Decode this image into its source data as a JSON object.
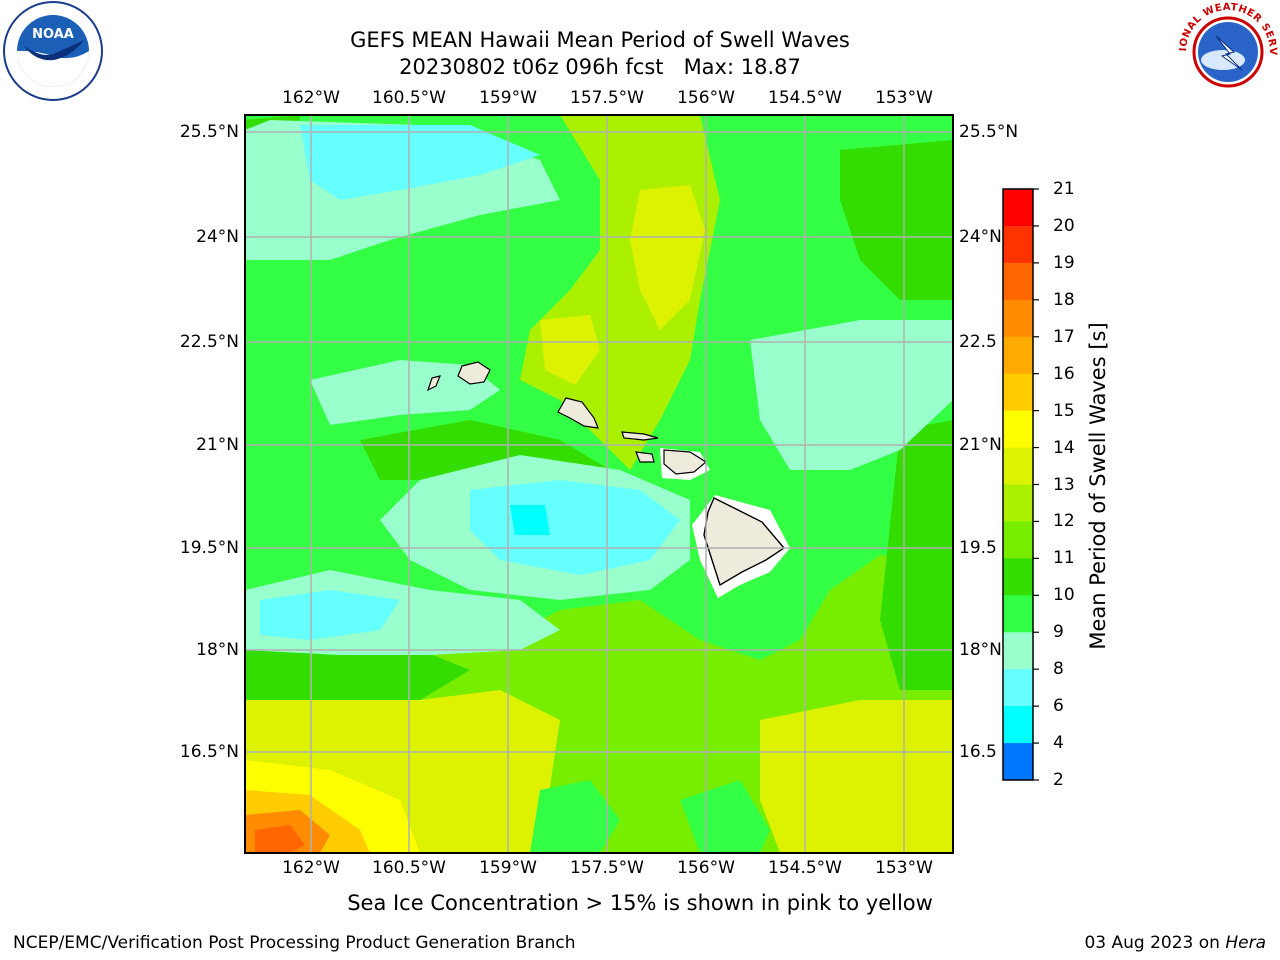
{
  "title": {
    "line1": "GEFS MEAN Hawaii Mean Period of Swell Waves",
    "line2": "20230802 t06z 096h fcst   Max: 18.87"
  },
  "map": {
    "lon_labels": [
      "162°W",
      "160.5°W",
      "159°W",
      "157.5°W",
      "156°W",
      "154.5°W",
      "153°W"
    ],
    "lat_labels": [
      "25.5°N",
      "24°N",
      "22.5°N",
      "21°N",
      "19.5°N",
      "18°N",
      "16.5°N"
    ],
    "right_lat_labels": [
      "25.5°N",
      "24°N",
      "22.5",
      "21°N",
      "19.5",
      "18°N",
      "16.5"
    ],
    "grid": true
  },
  "colorbar": {
    "title": "Mean Period of Swell Waves [s]",
    "levels": [
      "21",
      "20",
      "19",
      "18",
      "17",
      "16",
      "15",
      "14",
      "13",
      "12",
      "11",
      "10",
      "9",
      "8",
      "6",
      "4",
      "2"
    ],
    "colors": [
      "#ff0000",
      "#ff3300",
      "#ff6600",
      "#ff8c00",
      "#ffaa00",
      "#ffcc00",
      "#ffff00",
      "#ddf200",
      "#aaf000",
      "#77ee00",
      "#33dd00",
      "#33ff44",
      "#99ffcc",
      "#66ffff",
      "#00ffff",
      "#0077ff",
      "#0000ff"
    ]
  },
  "palette": {
    "green": "#33ff44",
    "dark_green": "#33dd00",
    "light_green": "#77ee00",
    "yellow_green": "#aaf000",
    "yellow": "#ddf200",
    "bright_yellow": "#ffff00",
    "orange": "#ff8c00",
    "red_orange": "#ff6600",
    "pale_cyan": "#99ffcc",
    "cyan": "#66ffff",
    "land": "#efebdc"
  },
  "subtitle": "Sea Ice Concentration > 15% is shown in pink to yellow",
  "footer": {
    "left": "NCEP/EMC/Verification Post Processing Product Generation Branch",
    "date": "03 Aug 2023 on",
    "machine": "Hera"
  },
  "logos": {
    "left": "noaa-logo",
    "left_text": "NOAA",
    "right": "nws-logo",
    "right_text": "NATIONAL WEATHER SERVICE"
  }
}
